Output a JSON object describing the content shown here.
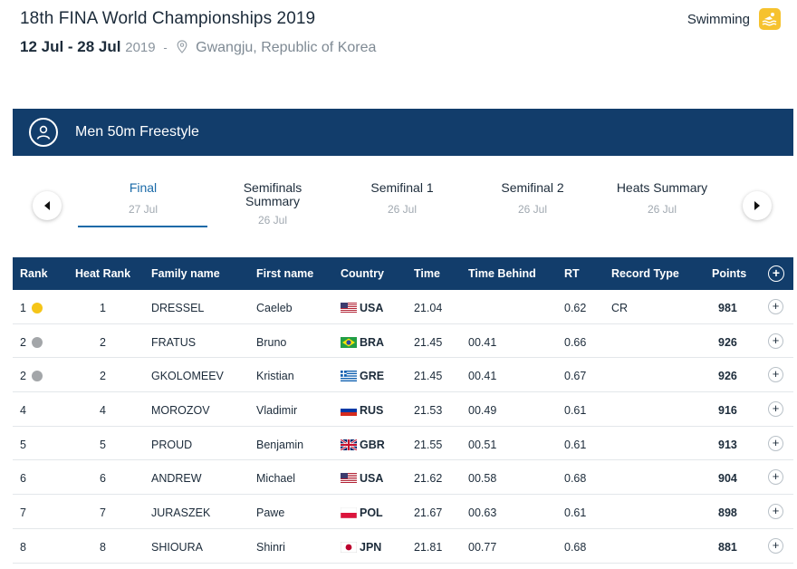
{
  "header": {
    "title": "18th FINA World Championships 2019",
    "dates": "12 Jul - 28 Jul",
    "year": "2019",
    "separator": "-",
    "location": "Gwangju, Republic of Korea",
    "sport": "Swimming",
    "sport_icon": "swimmer-icon",
    "pin_icon": "location-pin-icon"
  },
  "event": {
    "title": "Men 50m Freestyle",
    "icon": "athlete-icon"
  },
  "tabs": [
    {
      "label": "Final",
      "date": "27 Jul",
      "active": true
    },
    {
      "label": "Semifinals Summary",
      "date": "26 Jul",
      "active": false
    },
    {
      "label": "Semifinal 1",
      "date": "26 Jul",
      "active": false
    },
    {
      "label": "Semifinal 2",
      "date": "26 Jul",
      "active": false
    },
    {
      "label": "Heats Summary",
      "date": "26 Jul",
      "active": false
    }
  ],
  "table": {
    "headers": {
      "rank": "Rank",
      "heat_rank": "Heat Rank",
      "family_name": "Family name",
      "first_name": "First name",
      "country": "Country",
      "time": "Time",
      "time_behind": "Time Behind",
      "rt": "RT",
      "record_type": "Record Type",
      "points": "Points",
      "expand": "+"
    },
    "rows": [
      {
        "rank": "1",
        "medal": "gold",
        "heat_rank": "1",
        "family_name": "DRESSEL",
        "first_name": "Caeleb",
        "country": "USA",
        "time": "21.04",
        "time_behind": "",
        "rt": "0.62",
        "record_type": "CR",
        "points": "981"
      },
      {
        "rank": "2",
        "medal": "silver",
        "heat_rank": "2",
        "family_name": "FRATUS",
        "first_name": "Bruno",
        "country": "BRA",
        "time": "21.45",
        "time_behind": "00.41",
        "rt": "0.66",
        "record_type": "",
        "points": "926"
      },
      {
        "rank": "2",
        "medal": "silver",
        "heat_rank": "2",
        "family_name": "GKOLOMEEV",
        "first_name": "Kristian",
        "country": "GRE",
        "time": "21.45",
        "time_behind": "00.41",
        "rt": "0.67",
        "record_type": "",
        "points": "926"
      },
      {
        "rank": "4",
        "medal": "",
        "heat_rank": "4",
        "family_name": "MOROZOV",
        "first_name": "Vladimir",
        "country": "RUS",
        "time": "21.53",
        "time_behind": "00.49",
        "rt": "0.61",
        "record_type": "",
        "points": "916"
      },
      {
        "rank": "5",
        "medal": "",
        "heat_rank": "5",
        "family_name": "PROUD",
        "first_name": "Benjamin",
        "country": "GBR",
        "time": "21.55",
        "time_behind": "00.51",
        "rt": "0.61",
        "record_type": "",
        "points": "913"
      },
      {
        "rank": "6",
        "medal": "",
        "heat_rank": "6",
        "family_name": "ANDREW",
        "first_name": "Michael",
        "country": "USA",
        "time": "21.62",
        "time_behind": "00.58",
        "rt": "0.68",
        "record_type": "",
        "points": "904"
      },
      {
        "rank": "7",
        "medal": "",
        "heat_rank": "7",
        "family_name": "JURASZEK",
        "first_name": "Pawe",
        "country": "POL",
        "time": "21.67",
        "time_behind": "00.63",
        "rt": "0.61",
        "record_type": "",
        "points": "898"
      },
      {
        "rank": "8",
        "medal": "",
        "heat_rank": "8",
        "family_name": "SHIOURA",
        "first_name": "Shinri",
        "country": "JPN",
        "time": "21.81",
        "time_behind": "00.77",
        "rt": "0.68",
        "record_type": "",
        "points": "881"
      }
    ]
  },
  "colors": {
    "navy": "#123d6b",
    "accent_blue": "#1a6aa8",
    "gold": "#f5c518",
    "silver": "#a3a6a9",
    "sport_yellow": "#f6c22e"
  }
}
